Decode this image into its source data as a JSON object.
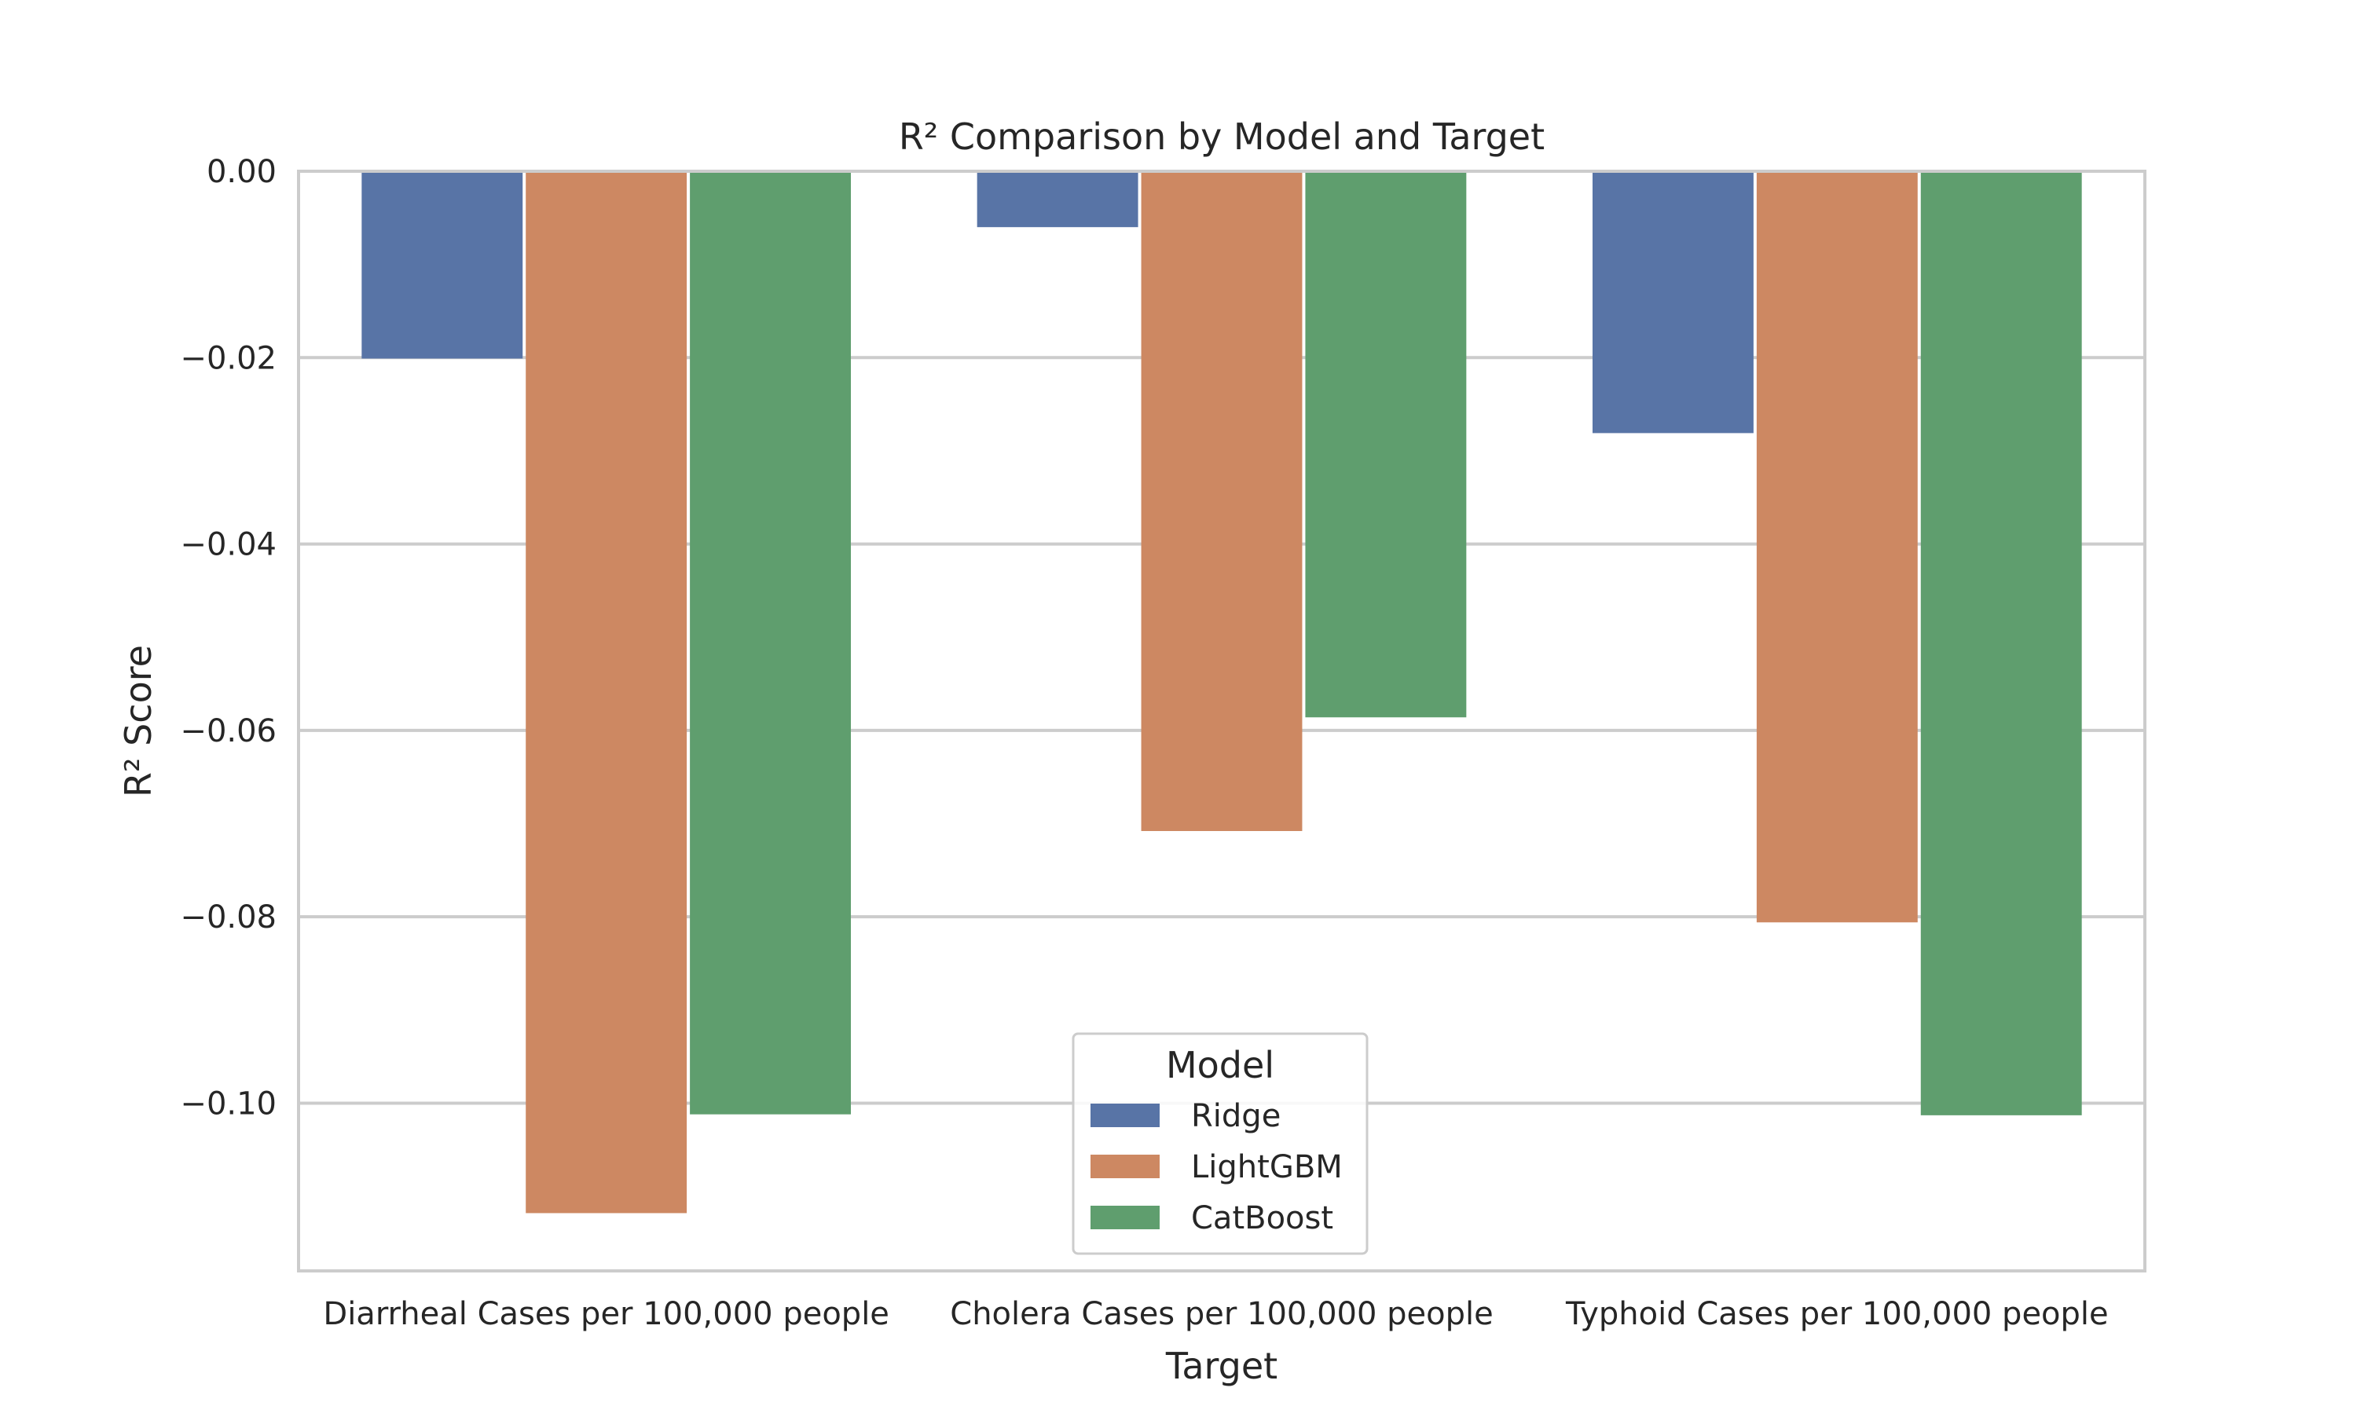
{
  "chart_data": {
    "type": "bar",
    "title": "R² Comparison by Model and Target",
    "xlabel": "Target",
    "ylabel": "R² Score",
    "categories": [
      "Diarrheal Cases per 100,000 people",
      "Cholera Cases per 100,000 people",
      "Typhoid Cases per 100,000 people"
    ],
    "series": [
      {
        "name": "Ridge",
        "color": "#5874a6",
        "values": [
          -0.0201,
          -0.006,
          -0.0281
        ]
      },
      {
        "name": "LightGBM",
        "color": "#cd8862",
        "values": [
          -0.1118,
          -0.0708,
          -0.0806
        ]
      },
      {
        "name": "CatBoost",
        "color": "#5f9e6e",
        "values": [
          -0.1012,
          -0.0586,
          -0.1013
        ]
      }
    ],
    "ylim": [
      -0.118,
      0.0
    ],
    "yticks": [
      0.0,
      -0.02,
      -0.04,
      -0.06,
      -0.08,
      -0.1
    ],
    "ytick_labels": [
      "0.00",
      "−0.02",
      "−0.04",
      "−0.06",
      "−0.08",
      "−0.10"
    ],
    "grid": true,
    "legend": {
      "title": "Model",
      "placement": "lower-center"
    }
  }
}
